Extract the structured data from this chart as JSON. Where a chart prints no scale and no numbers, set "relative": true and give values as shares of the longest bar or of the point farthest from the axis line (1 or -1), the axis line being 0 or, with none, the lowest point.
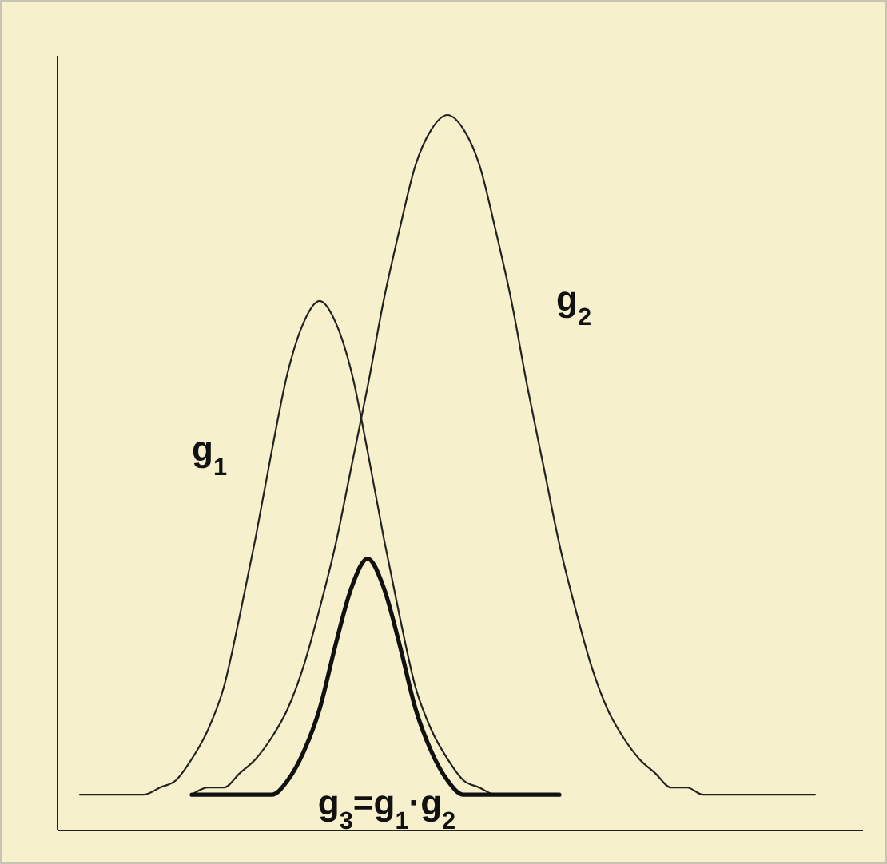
{
  "chart_data": {
    "type": "line",
    "relative": true,
    "marker": "none",
    "line_style": "solid",
    "categories": [
      null,
      null,
      null,
      null,
      null,
      null,
      null,
      null,
      null,
      null,
      null,
      null,
      null,
      null,
      null,
      null,
      null,
      null,
      null,
      null,
      null,
      null,
      null,
      null,
      null,
      null,
      null,
      null,
      null,
      null,
      null,
      null,
      null,
      null,
      null,
      null,
      null,
      null,
      null,
      null,
      null,
      null,
      null,
      null,
      null,
      null,
      null
    ],
    "series": [
      {
        "name": "g$_{1}$",
        "color": "#222222",
        "values": [
          0.05,
          0.05,
          0.05,
          0.05,
          0.05,
          0.06,
          0.07,
          0.1,
          0.14,
          0.2,
          0.3,
          0.41,
          0.53,
          0.64,
          0.71,
          0.74,
          0.71,
          0.64,
          0.53,
          0.41,
          0.3,
          0.2,
          0.14,
          0.1,
          0.07,
          0.06,
          0.05,
          0.05,
          0.05,
          0.05,
          0.05,
          null,
          null,
          null,
          null,
          null,
          null,
          null,
          null,
          null,
          null,
          null,
          null,
          null,
          null,
          null,
          null
        ]
      },
      {
        "name": "g$_{2}$",
        "color": "#222222",
        "values": [
          null,
          null,
          null,
          null,
          null,
          null,
          null,
          0.05,
          0.06,
          0.06,
          0.08,
          0.1,
          0.13,
          0.17,
          0.23,
          0.31,
          0.4,
          0.51,
          0.62,
          0.74,
          0.84,
          0.93,
          0.98,
          1.0,
          0.98,
          0.93,
          0.84,
          0.74,
          0.62,
          0.51,
          0.4,
          0.31,
          0.23,
          0.17,
          0.13,
          0.1,
          0.08,
          0.06,
          0.06,
          0.05,
          0.05,
          0.05,
          0.05,
          0.05,
          0.05,
          0.05,
          0.05
        ]
      },
      {
        "name": "g$_{3}$=g$_{1}$·g$_{2}$",
        "color": "#111111",
        "values": [
          null,
          null,
          null,
          null,
          null,
          null,
          null,
          0.05,
          0.05,
          0.05,
          0.05,
          0.05,
          0.05,
          0.07,
          0.11,
          0.17,
          0.26,
          0.34,
          0.38,
          0.34,
          0.26,
          0.17,
          0.11,
          0.07,
          0.05,
          0.05,
          0.05,
          0.05,
          0.05,
          0.05,
          0.05,
          null,
          null,
          null,
          null,
          null,
          null,
          null,
          null,
          null,
          null,
          null,
          null,
          null,
          null,
          null,
          null
        ]
      }
    ]
  }
}
